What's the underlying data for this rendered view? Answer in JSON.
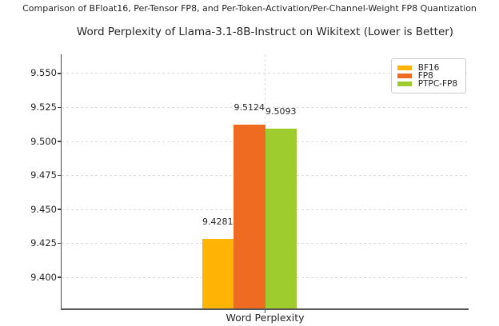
{
  "figure": {
    "suptitle": "Comparison of BFloat16, Per-Tensor FP8, and Per-Token-Activation/Per-Channel-Weight FP8 Quantization"
  },
  "chart_data": {
    "type": "bar",
    "title": "Word Perplexity of Llama-3.1-8B-Instruct on Wikitext (Lower is Better)",
    "categories": [
      "Word Perplexity"
    ],
    "series": [
      {
        "name": "BF16",
        "values": [
          9.4281
        ],
        "color": "#FFB405"
      },
      {
        "name": "FP8",
        "values": [
          9.5124
        ],
        "color": "#EE6B21"
      },
      {
        "name": "PTPC-FP8",
        "values": [
          9.5093
        ],
        "color": "#9ECB2D"
      }
    ],
    "value_label_decimals": 4,
    "xlabel": "Word Perplexity",
    "ylabel": "",
    "ylim": [
      9.3771,
      9.5641
    ],
    "yticks": [
      9.4,
      9.425,
      9.45,
      9.475,
      9.5,
      9.525,
      9.55
    ],
    "ytick_label_format": "3dp",
    "grid": true,
    "legend": {
      "position": "upper right"
    }
  },
  "colors": {
    "spine": "#4a4a4a",
    "grid": "#dcdcdc",
    "text": "#262626",
    "legend_border": "#cccccc",
    "background": "#ffffff"
  }
}
